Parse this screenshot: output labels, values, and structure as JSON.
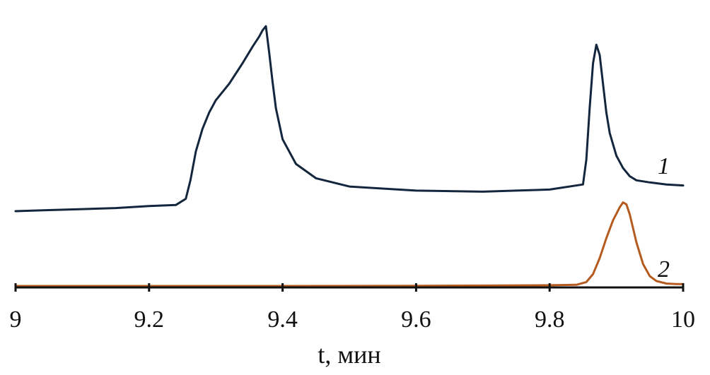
{
  "chart_data": {
    "type": "line",
    "xlabel": "t, мин",
    "ylabel": "",
    "xlim": [
      9,
      10
    ],
    "xticks": [
      "9",
      "9.2",
      "9.4",
      "9.6",
      "9.8",
      "10"
    ],
    "y_axis_shown": false,
    "grid": false,
    "series": [
      {
        "name": "1",
        "color": "#14263d",
        "x": [
          9.0,
          9.05,
          9.1,
          9.15,
          9.2,
          9.24,
          9.255,
          9.262,
          9.27,
          9.28,
          9.29,
          9.3,
          9.32,
          9.34,
          9.355,
          9.365,
          9.37,
          9.375,
          9.38,
          9.385,
          9.39,
          9.4,
          9.42,
          9.45,
          9.5,
          9.6,
          9.7,
          9.75,
          9.8,
          9.85,
          9.855,
          9.86,
          9.865,
          9.87,
          9.875,
          9.88,
          9.885,
          9.89,
          9.9,
          9.91,
          9.92,
          9.93,
          9.95,
          9.975,
          10.0
        ],
        "y": [
          0.0,
          0.005,
          0.01,
          0.015,
          0.025,
          0.03,
          0.06,
          0.15,
          0.29,
          0.4,
          0.48,
          0.54,
          0.62,
          0.72,
          0.8,
          0.85,
          0.88,
          0.9,
          0.77,
          0.63,
          0.5,
          0.35,
          0.23,
          0.16,
          0.12,
          0.1,
          0.095,
          0.1,
          0.105,
          0.13,
          0.25,
          0.5,
          0.72,
          0.81,
          0.76,
          0.62,
          0.48,
          0.38,
          0.27,
          0.21,
          0.17,
          0.15,
          0.14,
          0.13,
          0.125
        ]
      },
      {
        "name": "2",
        "color": "#b55b1f",
        "x": [
          9.0,
          9.2,
          9.4,
          9.6,
          9.7,
          9.8,
          9.84,
          9.855,
          9.865,
          9.875,
          9.885,
          9.895,
          9.905,
          9.91,
          9.915,
          9.92,
          9.925,
          9.93,
          9.94,
          9.95,
          9.96,
          9.975,
          9.99,
          10.0
        ],
        "y": [
          0.0,
          0.0,
          0.0,
          0.002,
          0.004,
          0.008,
          0.012,
          0.04,
          0.12,
          0.28,
          0.48,
          0.66,
          0.79,
          0.84,
          0.82,
          0.72,
          0.58,
          0.44,
          0.22,
          0.1,
          0.05,
          0.025,
          0.02,
          0.02
        ]
      }
    ]
  }
}
